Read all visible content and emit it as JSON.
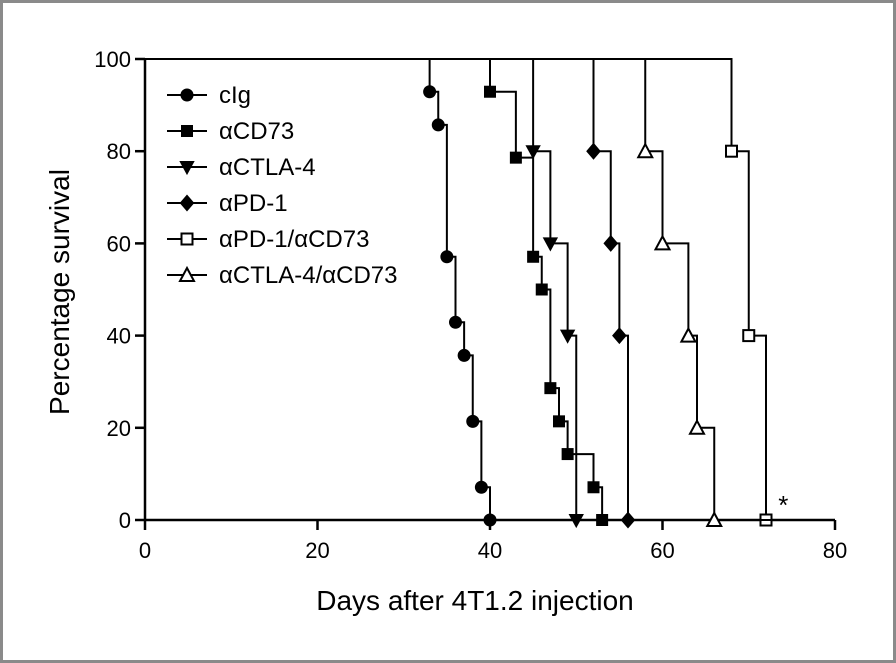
{
  "chart_data": {
    "type": "line",
    "title": "",
    "xlabel": "Days after 4T1.2 injection",
    "ylabel": "Percentage survival",
    "xlim": [
      0,
      80
    ],
    "ylim": [
      0,
      100
    ],
    "xticks": [
      "0",
      "20",
      "40",
      "60",
      "80"
    ],
    "yticks": [
      "0",
      "20",
      "40",
      "60",
      "80",
      "100"
    ],
    "grid": false,
    "legend_position": "top-left",
    "step": true,
    "annotation": {
      "text": "*",
      "x": 74,
      "y": 3
    },
    "series": [
      {
        "name": "cIg",
        "marker": "circle",
        "filled": true,
        "x": [
          33,
          34,
          35,
          36,
          37,
          38,
          39,
          40
        ],
        "y": [
          92.9,
          85.7,
          57.1,
          42.9,
          35.7,
          21.4,
          7.1,
          0
        ]
      },
      {
        "name": "αCD73",
        "marker": "square",
        "filled": true,
        "x": [
          40,
          43,
          45,
          46,
          47,
          48,
          49,
          52,
          53
        ],
        "y": [
          92.9,
          78.6,
          57.1,
          50,
          28.6,
          21.4,
          14.3,
          7.1,
          0
        ]
      },
      {
        "name": "αCTLA-4",
        "marker": "triangle-down",
        "filled": true,
        "x": [
          45,
          47,
          49,
          50
        ],
        "y": [
          80,
          60,
          40,
          0
        ]
      },
      {
        "name": "αPD-1",
        "marker": "diamond",
        "filled": true,
        "x": [
          52,
          54,
          55,
          56
        ],
        "y": [
          80,
          60,
          40,
          0
        ]
      },
      {
        "name": "αPD-1/αCD73",
        "marker": "square",
        "filled": false,
        "x": [
          68,
          70,
          72
        ],
        "y": [
          80,
          40,
          0
        ]
      },
      {
        "name": "αCTLA-4/αCD73",
        "marker": "triangle-up",
        "filled": false,
        "x": [
          58,
          60,
          63,
          64,
          66
        ],
        "y": [
          80,
          60,
          40,
          20,
          0
        ]
      }
    ]
  }
}
